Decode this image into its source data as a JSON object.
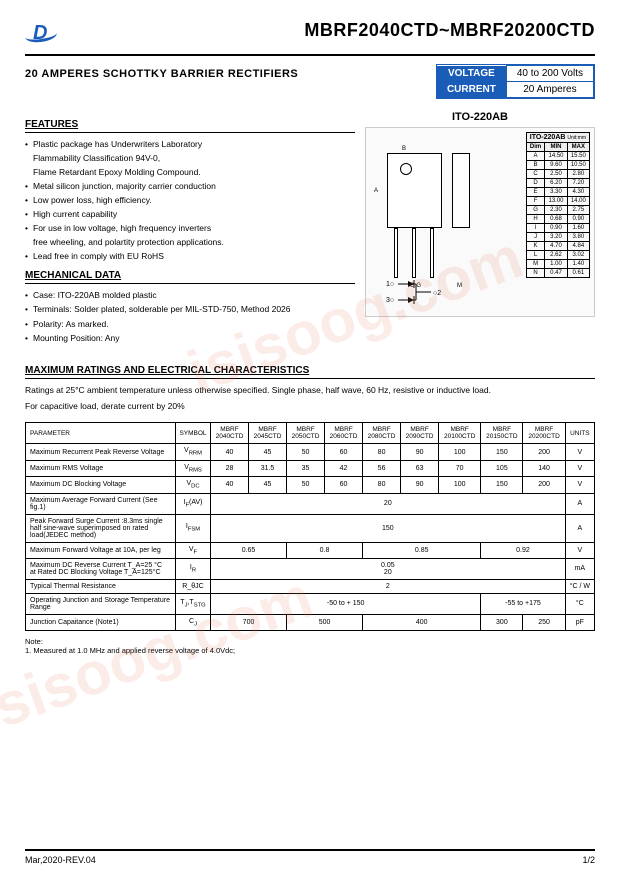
{
  "header": {
    "part_number": "MBRF2040CTD~MBRF20200CTD",
    "title": "20 AMPERES SCHOTTKY BARRIER RECTIFIERS",
    "specs": [
      {
        "label": "VOLTAGE",
        "value": "40 to 200 Volts"
      },
      {
        "label": "CURRENT",
        "value": "20 Amperes"
      }
    ]
  },
  "features": {
    "head": "FEATURES",
    "items": [
      "Plastic package has Underwriters Laboratory",
      "Flammability Classification 94V-0,",
      "Flame Retardant Epoxy Molding Compound.",
      "Metal silicon junction, majority carrier conduction",
      "Low power loss, high efficiency.",
      "High current capability",
      "For use in low voltage, high frequency inverters",
      "free wheeling, and polartity protection applications.",
      "Lead free in comply with EU RoHS"
    ]
  },
  "mechanical": {
    "head": "MECHANICAL DATA",
    "items": [
      "Case: ITO-220AB molded plastic",
      "Terminals: Solder plated, solderable per MIL-STD-750, Method 2026",
      "Polarity: As marked.",
      "Mounting Position: Any"
    ]
  },
  "package": {
    "label": "ITO-220AB",
    "dim_title": "ITO-220AB",
    "dim_unit": "Unit:mm",
    "dims": [
      {
        "d": "Dim",
        "min": "MIN",
        "max": "MAX"
      },
      {
        "d": "A",
        "min": "14.50",
        "max": "15.50"
      },
      {
        "d": "B",
        "min": "9.60",
        "max": "10.50"
      },
      {
        "d": "C",
        "min": "2.50",
        "max": "2.80"
      },
      {
        "d": "D",
        "min": "6.20",
        "max": "7.20"
      },
      {
        "d": "E",
        "min": "3.30",
        "max": "4.30"
      },
      {
        "d": "F",
        "min": "13.00",
        "max": "14.00"
      },
      {
        "d": "G",
        "min": "2.30",
        "max": "2.75"
      },
      {
        "d": "H",
        "min": "0.68",
        "max": "0.90"
      },
      {
        "d": "I",
        "min": "0.90",
        "max": "1.60"
      },
      {
        "d": "J",
        "min": "3.20",
        "max": "3.80"
      },
      {
        "d": "K",
        "min": "4.70",
        "max": "4.84"
      },
      {
        "d": "L",
        "min": "2.62",
        "max": "3.02"
      },
      {
        "d": "M",
        "min": "1.00",
        "max": "1.40"
      },
      {
        "d": "N",
        "min": "0.47",
        "max": "0.61"
      }
    ]
  },
  "ratings": {
    "head": "MAXIMUM RATINGS AND ELECTRICAL CHARACTERISTICS",
    "text1": "Ratings at 25°C ambient temperature unless otherwise specified. Single phase, half wave, 60 Hz, resistive or inductive load.",
    "text2": "For capacitive load, derate current by 20%"
  },
  "table": {
    "headers": [
      "PARAMETER",
      "SYMBOL",
      "MBRF 2040CTD",
      "MBRF 2045CTD",
      "MBRF 2050CTD",
      "MBRF 2060CTD",
      "MBRF 2080CTD",
      "MBRF 2090CTD",
      "MBRF 20100CTD",
      "MBRF 20150CTD",
      "MBRF 20200CTD",
      "UNITS"
    ],
    "rows": [
      {
        "p": "Maximum Recurrent Peak Reverse Voltage",
        "s": "V_RRM",
        "v": [
          "40",
          "45",
          "50",
          "60",
          "80",
          "90",
          "100",
          "150",
          "200"
        ],
        "u": "V"
      },
      {
        "p": "Maximum RMS Voltage",
        "s": "V_RMS",
        "v": [
          "28",
          "31.5",
          "35",
          "42",
          "56",
          "63",
          "70",
          "105",
          "140"
        ],
        "u": "V"
      },
      {
        "p": "Maximum DC Blocking Voltage",
        "s": "V_DC",
        "v": [
          "40",
          "45",
          "50",
          "60",
          "80",
          "90",
          "100",
          "150",
          "200"
        ],
        "u": "V"
      },
      {
        "p": "Maximum Average Forward  Current (See fig.1)",
        "s": "I_F(AV)",
        "span": "20",
        "u": "A"
      },
      {
        "p": "Peak Forward Surge Current :8.3ms single half sine-wave superimposed on rated load(JEDEC method)",
        "s": "I_FSM",
        "span": "150",
        "u": "A"
      },
      {
        "p": "Maximum Forward Voltage at 10A, per leg",
        "s": "V_F",
        "groups": [
          {
            "c": 2,
            "v": "0.65"
          },
          {
            "c": 2,
            "v": "0.8"
          },
          {
            "c": 3,
            "v": "0.85"
          },
          {
            "c": 2,
            "v": "0.92"
          }
        ],
        "u": "V"
      },
      {
        "p": "Maximum DC Reverse Current  T_A=25 °C\nat Rated DC Blocking Voltage T_A=125°C",
        "s": "I_R",
        "span": "0.05\n20",
        "u": "mA"
      },
      {
        "p": "Typical Thermal Resistance",
        "s": "R_θJC",
        "span": "2",
        "u": "°C / W"
      },
      {
        "p": "Operating Junction and Storage Temperature Range",
        "s": "T_J,T_STG",
        "groups": [
          {
            "c": 7,
            "v": "-50 to + 150"
          },
          {
            "c": 2,
            "v": "-55 to +175"
          }
        ],
        "u": "°C"
      },
      {
        "p": "Junction  Capaitance  (Note1)",
        "s": "C_J",
        "groups": [
          {
            "c": 2,
            "v": "700"
          },
          {
            "c": 2,
            "v": "500"
          },
          {
            "c": 3,
            "v": "400"
          },
          {
            "c": 1,
            "v": "300"
          },
          {
            "c": 1,
            "v": "250"
          }
        ],
        "u": "pF"
      }
    ]
  },
  "note": {
    "head": "Note:",
    "text": "1. Measured at 1.0 MHz and applied reverse voltage of 4.0Vdc;"
  },
  "footer": {
    "left": "Mar,2020-REV.04",
    "right": "1/2"
  },
  "watermark": "isisoog.com"
}
